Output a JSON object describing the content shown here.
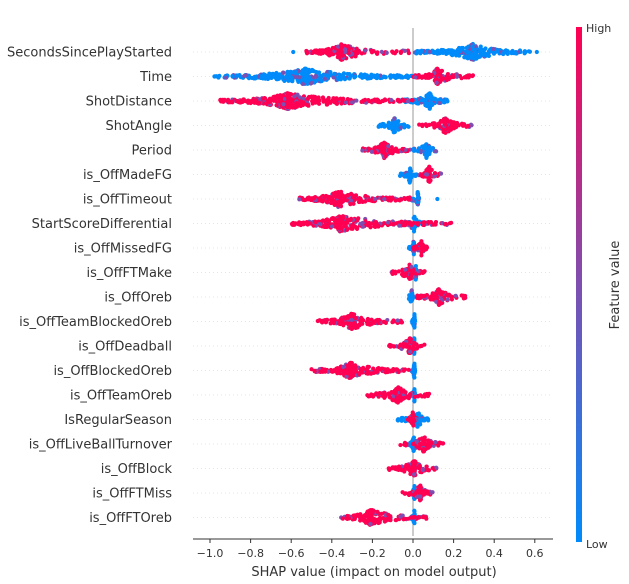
{
  "chart_data": {
    "type": "scatter",
    "subtype": "shap-beeswarm-summary",
    "xlabel": "SHAP value (impact on model output)",
    "xlim": [
      -1.05,
      0.7
    ],
    "xticks": [
      -1.0,
      -0.8,
      -0.6,
      -0.4,
      -0.2,
      0.0,
      0.2,
      0.4,
      0.6
    ],
    "xtick_labels": [
      "−1.0",
      "−0.8",
      "−0.6",
      "−0.4",
      "−0.2",
      "0.0",
      "0.2",
      "0.4",
      "0.6"
    ],
    "colorbar": {
      "label": "Feature value",
      "high_label": "High",
      "low_label": "Low",
      "high_color": "#ff0052",
      "low_color": "#008bfb",
      "position": "right"
    },
    "features": [
      {
        "name": "SecondsSincePlayStarted",
        "high": [
          [
            -0.53,
            -0.02,
            0.35
          ]
        ],
        "low": [
          [
            0.01,
            0.58,
            0.5
          ]
        ],
        "outliers": [
          [
            -0.59,
            0.2
          ],
          [
            0.61,
            0.1
          ]
        ]
      },
      {
        "name": "Time",
        "high": [
          [
            0.0,
            0.3,
            0.4
          ]
        ],
        "low": [
          [
            -0.98,
            0.02,
            0.45
          ]
        ],
        "outliers": []
      },
      {
        "name": "ShotDistance",
        "high": [
          [
            -0.95,
            0.0,
            0.35
          ]
        ],
        "low": [
          [
            -0.08,
            0.17,
            0.65
          ]
        ],
        "outliers": []
      },
      {
        "name": "ShotAngle",
        "high": [
          [
            0.03,
            0.29,
            0.5
          ]
        ],
        "low": [
          [
            -0.17,
            -0.01,
            0.5
          ]
        ],
        "outliers": []
      },
      {
        "name": "Period",
        "high": [
          [
            -0.25,
            -0.01,
            0.45
          ]
        ],
        "low": [
          [
            0.0,
            0.12,
            0.55
          ]
        ],
        "outliers": []
      },
      {
        "name": "is_OffMadeFG",
        "high": [
          [
            0.02,
            0.14,
            0.5
          ]
        ],
        "low": [
          [
            -0.07,
            0.02,
            0.6
          ]
        ],
        "outliers": []
      },
      {
        "name": "is_OffTimeout",
        "high": [
          [
            -0.56,
            -0.01,
            0.35
          ]
        ],
        "low": [
          [
            -0.01,
            0.03,
            0.85
          ]
        ],
        "outliers": [
          [
            0.12,
            0.1
          ]
        ]
      },
      {
        "name": "StartScoreDifferential",
        "high": [
          [
            -0.6,
            0.2,
            0.3
          ]
        ],
        "low": [
          [
            -0.05,
            0.06,
            0.5
          ]
        ],
        "outliers": []
      },
      {
        "name": "is_OffMissedFG",
        "high": [
          [
            0.0,
            0.07,
            0.6
          ]
        ],
        "low": [
          [
            -0.02,
            0.01,
            0.8
          ]
        ],
        "outliers": []
      },
      {
        "name": "is_OffFTMake",
        "high": [
          [
            -0.11,
            0.06,
            0.55
          ]
        ],
        "low": [
          [
            -0.01,
            0.02,
            0.8
          ]
        ],
        "outliers": []
      },
      {
        "name": "is_OffOreb",
        "high": [
          [
            0.02,
            0.26,
            0.45
          ]
        ],
        "low": [
          [
            -0.03,
            0.0,
            0.8
          ]
        ],
        "outliers": []
      },
      {
        "name": "is_OffTeamBlockedOreb",
        "high": [
          [
            -0.47,
            -0.05,
            0.4
          ]
        ],
        "low": [
          [
            -0.01,
            0.01,
            0.85
          ]
        ],
        "outliers": []
      },
      {
        "name": "is_OffDeadball",
        "high": [
          [
            -0.12,
            0.07,
            0.55
          ]
        ],
        "low": [
          [
            -0.01,
            0.01,
            0.8
          ]
        ],
        "outliers": []
      },
      {
        "name": "is_OffBlockedOreb",
        "high": [
          [
            -0.5,
            -0.02,
            0.4
          ]
        ],
        "low": [
          [
            -0.01,
            0.01,
            0.85
          ]
        ],
        "outliers": []
      },
      {
        "name": "is_OffTeamOreb",
        "high": [
          [
            -0.23,
            0.08,
            0.5
          ]
        ],
        "low": [
          [
            -0.01,
            0.01,
            0.85
          ]
        ],
        "outliers": []
      },
      {
        "name": "IsRegularSeason",
        "high": [
          [
            -0.03,
            0.02,
            0.6
          ]
        ],
        "low": [
          [
            -0.08,
            0.09,
            0.6
          ]
        ],
        "outliers": []
      },
      {
        "name": "is_OffLiveBallTurnover",
        "high": [
          [
            -0.07,
            0.15,
            0.55
          ]
        ],
        "low": [
          [
            -0.02,
            0.01,
            0.8
          ]
        ],
        "outliers": []
      },
      {
        "name": "is_OffBlock",
        "high": [
          [
            -0.12,
            0.13,
            0.5
          ]
        ],
        "low": [
          [
            -0.01,
            0.01,
            0.85
          ]
        ],
        "outliers": []
      },
      {
        "name": "is_OffFTMiss",
        "high": [
          [
            -0.06,
            0.1,
            0.6
          ]
        ],
        "low": [
          [
            -0.01,
            0.01,
            0.85
          ]
        ],
        "outliers": []
      },
      {
        "name": "is_OffFTOreb",
        "high": [
          [
            -0.36,
            0.07,
            0.35
          ]
        ],
        "low": [
          [
            -0.01,
            0.01,
            0.85
          ]
        ],
        "outliers": []
      }
    ]
  }
}
